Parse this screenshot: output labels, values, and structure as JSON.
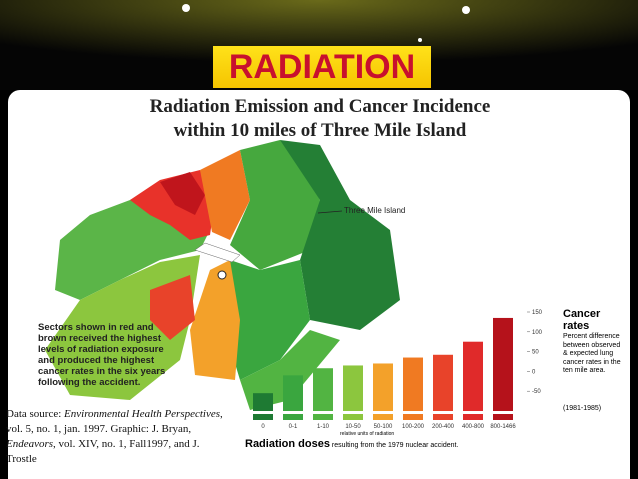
{
  "slide_title": "RADIATION",
  "figure": {
    "title_line1": "Radiation Emission and Cancer Incidence",
    "title_line2": "within 10 miles of Three Mile Island",
    "map_label": "Three Mile Island",
    "caption": "Sectors shown in red and brown received the highest levels of radiation exposure and produced the highest cancer rates in the six years following the accident.",
    "source": {
      "prefix": "Data source: ",
      "journal": "Environmental Health Perspectives",
      "details": ", vol. 5, no. 1, jan. 1997.",
      "graphic_prefix": "Graphic: J. Bryan, ",
      "magazine": "Endeavors",
      "graphic_details": ", vol. XIV, no. 1, Fall1997, and J. Trostle"
    }
  },
  "chart_data": {
    "type": "bar",
    "title": "Cancer rates",
    "subtitle": "Percent difference between observed & expected lung cancer rates in the ten mile area.",
    "period": "(1981-1985)",
    "x_label": "Radiation doses",
    "x_label_note": "resulting from the 1979 nuclear accident.",
    "x_units": "relative units of radiation",
    "categories": [
      "0",
      "0-1",
      "1-10",
      "10-50",
      "50-100",
      "100-200",
      "200-400",
      "400-800",
      "800-1466"
    ],
    "values": [
      -55,
      -10,
      8,
      15,
      20,
      35,
      42,
      75,
      135
    ],
    "colors": [
      "#1e7a33",
      "#3aa63f",
      "#52b442",
      "#8cc63e",
      "#f3a12a",
      "#f07a22",
      "#e8432a",
      "#e02a2a",
      "#b5121b"
    ],
    "ylim": [
      -100,
      150
    ],
    "yticks": [
      150,
      100,
      50,
      0,
      -50
    ]
  }
}
